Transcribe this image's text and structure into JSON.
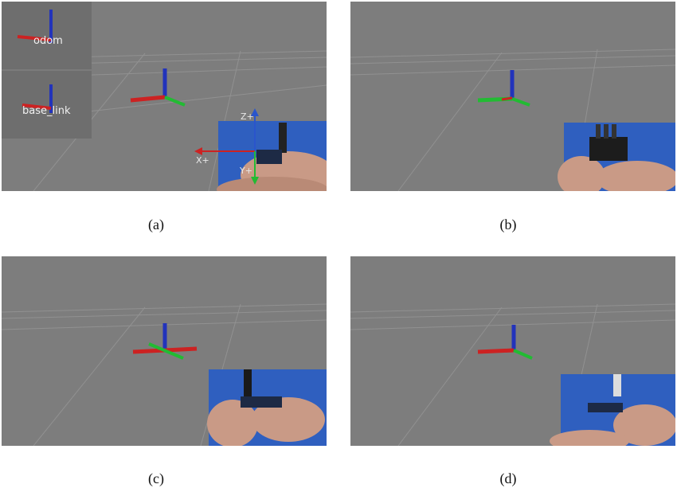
{
  "panels": [
    {
      "caption": "(a)",
      "tf_frames": [
        "odom",
        "base_link"
      ],
      "axis_labels": [
        "Z+",
        "X+",
        "Y+"
      ]
    },
    {
      "caption": "(b)"
    },
    {
      "caption": "(c)"
    },
    {
      "caption": "(d)"
    }
  ],
  "colors": {
    "viewport": "#7d7d7d",
    "grid": "#9a9a9a",
    "axis_x": "#cc2222",
    "axis_y": "#22bb33",
    "axis_z": "#2233bb",
    "inset_background": "#2f5fbf",
    "skin": "#c99a86"
  },
  "icons": [
    "tf-axes-icon",
    "sensor-board-icon"
  ]
}
